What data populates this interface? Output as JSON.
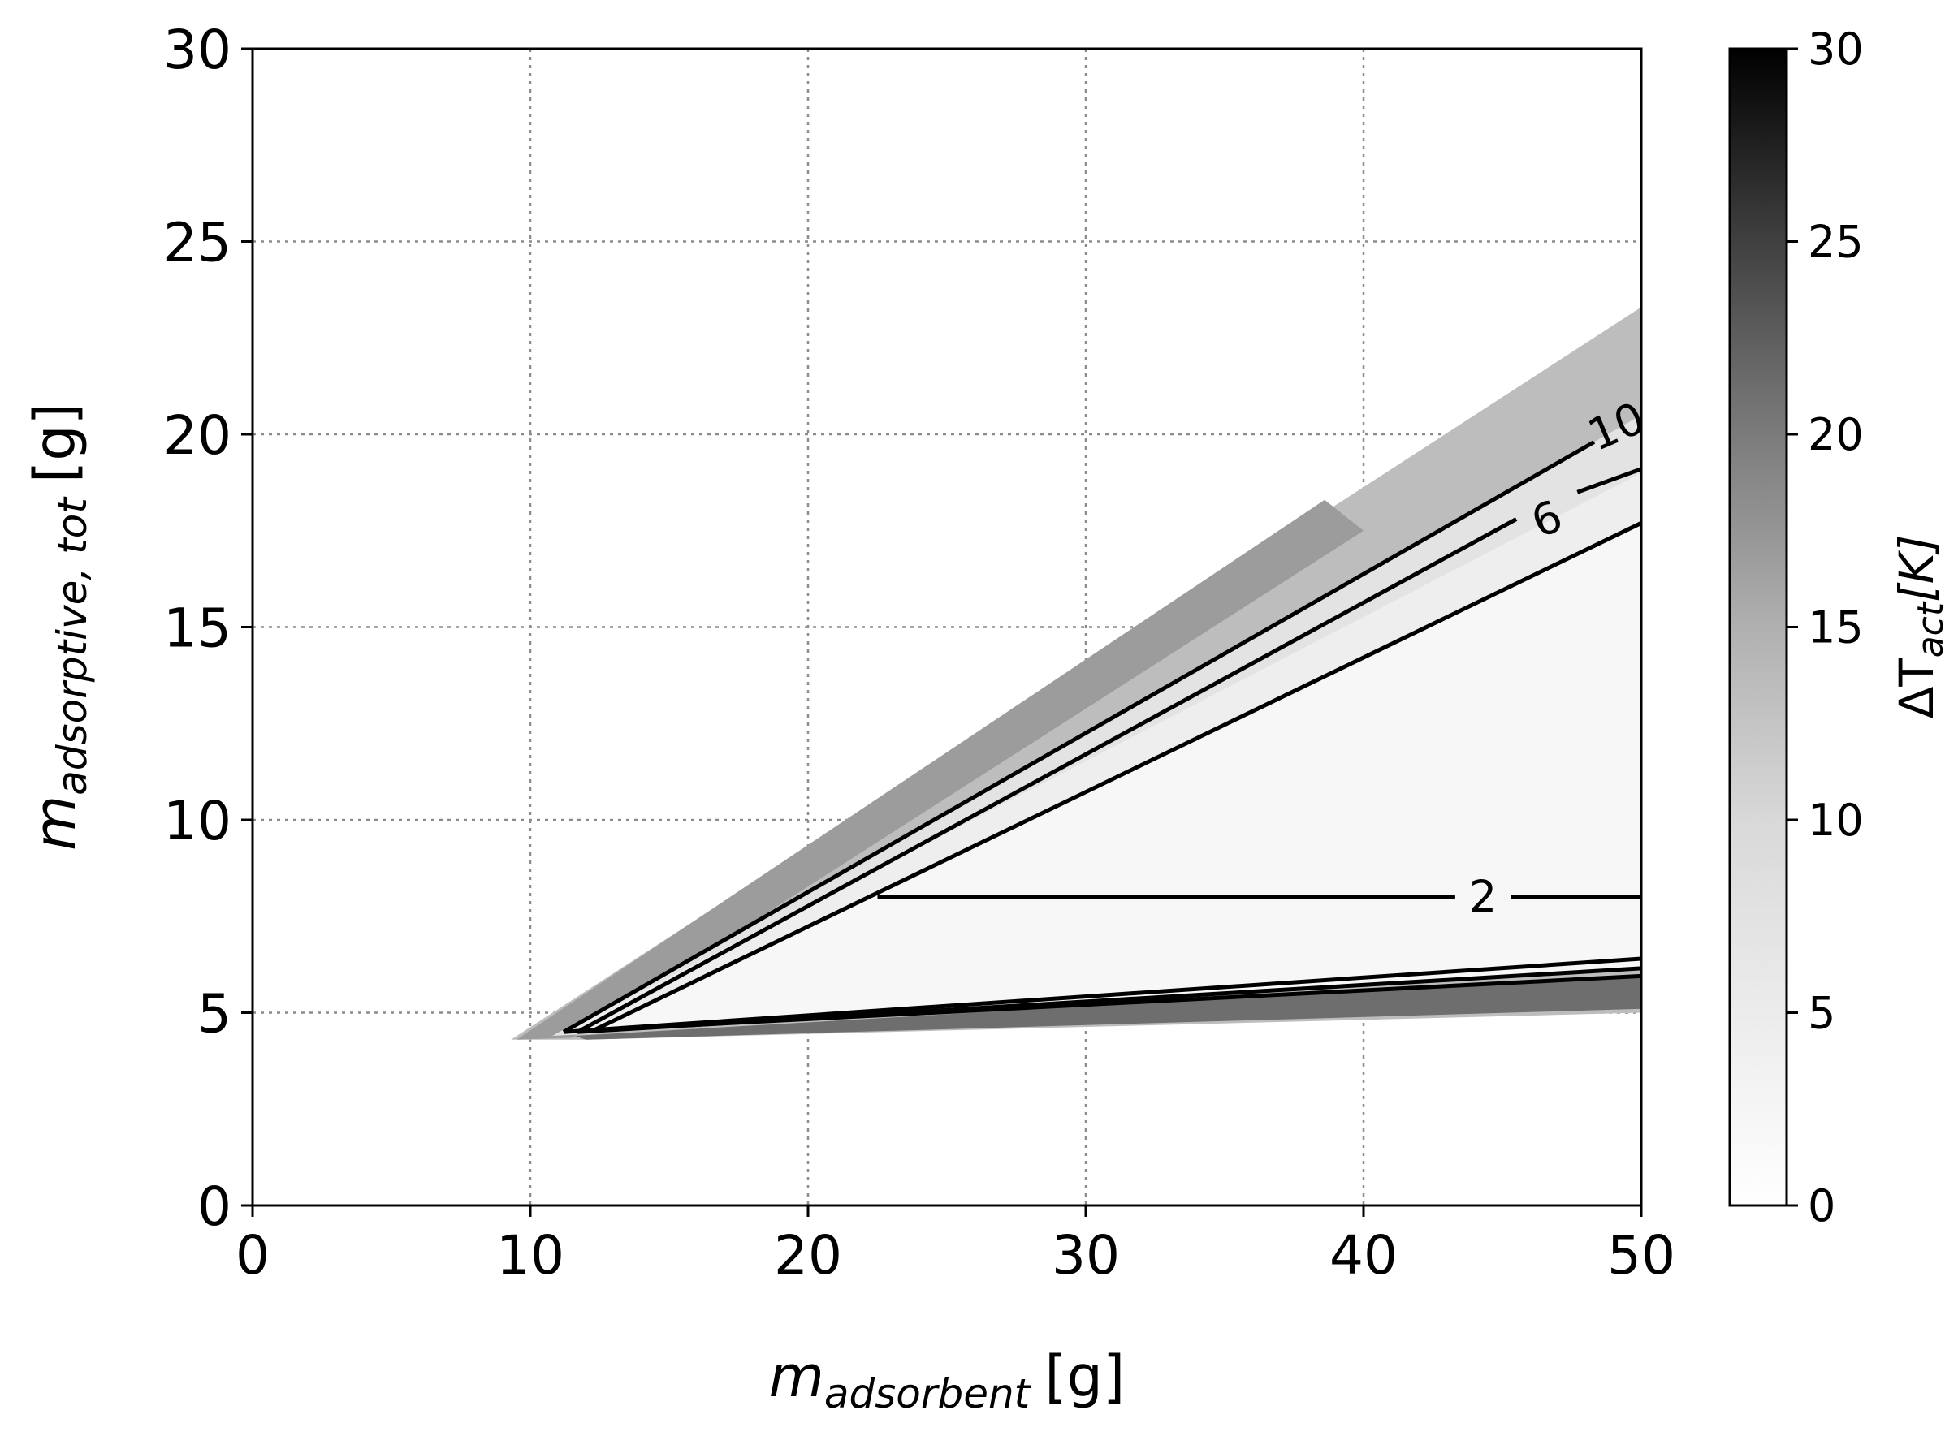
{
  "chart_data": {
    "type": "contour",
    "xlabel": {
      "main": "m",
      "sub": "adsorbent",
      "unit": "[g]"
    },
    "ylabel": {
      "main": "m",
      "sub": "adsorptive, tot",
      "unit": "[g]"
    },
    "xlim": [
      0,
      50
    ],
    "ylim": [
      0,
      30
    ],
    "xticks": [
      "0",
      "10",
      "20",
      "30",
      "40",
      "50"
    ],
    "yticks": [
      "0",
      "5",
      "10",
      "15",
      "20",
      "25",
      "30"
    ],
    "grid": true,
    "colorbar": {
      "label_prefix": "ΔT",
      "label_sub": "act",
      "label_suffix": "[K]",
      "range": [
        0,
        30
      ],
      "ticks": [
        "0",
        "5",
        "10",
        "15",
        "20",
        "25",
        "30"
      ],
      "colormap": "gray_r"
    },
    "filled_regions": [
      {
        "level": 10,
        "color": "#bdbdbd",
        "points": [
          [
            9.3,
            4.3
          ],
          [
            50,
            23.3
          ],
          [
            50,
            5.0
          ],
          [
            12,
            4.3
          ]
        ]
      },
      {
        "level": 15,
        "color": "#9c9c9c",
        "points": [
          [
            9.5,
            4.3
          ],
          [
            38.6,
            18.3
          ],
          [
            40,
            17.5
          ],
          [
            11.5,
            4.35
          ]
        ]
      },
      {
        "level": 6,
        "color": "#e3e3e3",
        "points": [
          [
            10.8,
            4.4
          ],
          [
            50,
            20.5
          ],
          [
            50,
            6.6
          ],
          [
            12.2,
            4.45
          ]
        ]
      },
      {
        "level": 4,
        "color": "#eeeeee",
        "points": [
          [
            11.2,
            4.5
          ],
          [
            50,
            19.0
          ],
          [
            50,
            6.3
          ],
          [
            12.3,
            4.5
          ]
        ]
      },
      {
        "level": 2,
        "color": "#f7f7f7",
        "points": [
          [
            12.4,
            4.6
          ],
          [
            50,
            17.7
          ],
          [
            50,
            6.1
          ],
          [
            13.0,
            4.6
          ]
        ]
      },
      {
        "level": 20,
        "color": "#6e6e6e",
        "points": [
          [
            11.6,
            4.4
          ],
          [
            50,
            6.0
          ],
          [
            50,
            5.1
          ],
          [
            12.0,
            4.3
          ]
        ]
      }
    ],
    "contours": [
      {
        "level": "10",
        "points": [
          [
            11.2,
            4.5
          ],
          [
            48.3,
            19.8
          ]
        ],
        "label_at": [
          49.1,
          20.2
        ],
        "label_angle": -23
      },
      {
        "level": "",
        "points": [
          [
            49.9,
            20.3
          ],
          [
            50,
            20.35
          ]
        ]
      },
      {
        "level": "6",
        "points": [
          [
            11.7,
            4.5
          ],
          [
            45.5,
            17.8
          ]
        ],
        "label_at": [
          46.6,
          17.8
        ],
        "label_angle": -23,
        "seg2": [
          [
            47.7,
            18.5
          ],
          [
            50,
            19.1
          ]
        ]
      },
      {
        "level": "",
        "points": [
          [
            12.3,
            4.55
          ],
          [
            50,
            17.7
          ]
        ]
      },
      {
        "level": "2",
        "points": [
          [
            22.5,
            8.0
          ],
          [
            43.3,
            8.0
          ]
        ],
        "label_at": [
          44.3,
          8.0
        ],
        "label_angle": 0,
        "seg2": [
          [
            45.3,
            8.0
          ],
          [
            50,
            8.0
          ]
        ]
      },
      {
        "level": "",
        "points": [
          [
            11.2,
            4.5
          ],
          [
            50,
            6.4
          ]
        ]
      },
      {
        "level": "",
        "points": [
          [
            11.7,
            4.5
          ],
          [
            50,
            6.15
          ]
        ]
      },
      {
        "level": "",
        "points": [
          [
            12.3,
            4.55
          ],
          [
            50,
            5.95
          ]
        ]
      }
    ]
  }
}
